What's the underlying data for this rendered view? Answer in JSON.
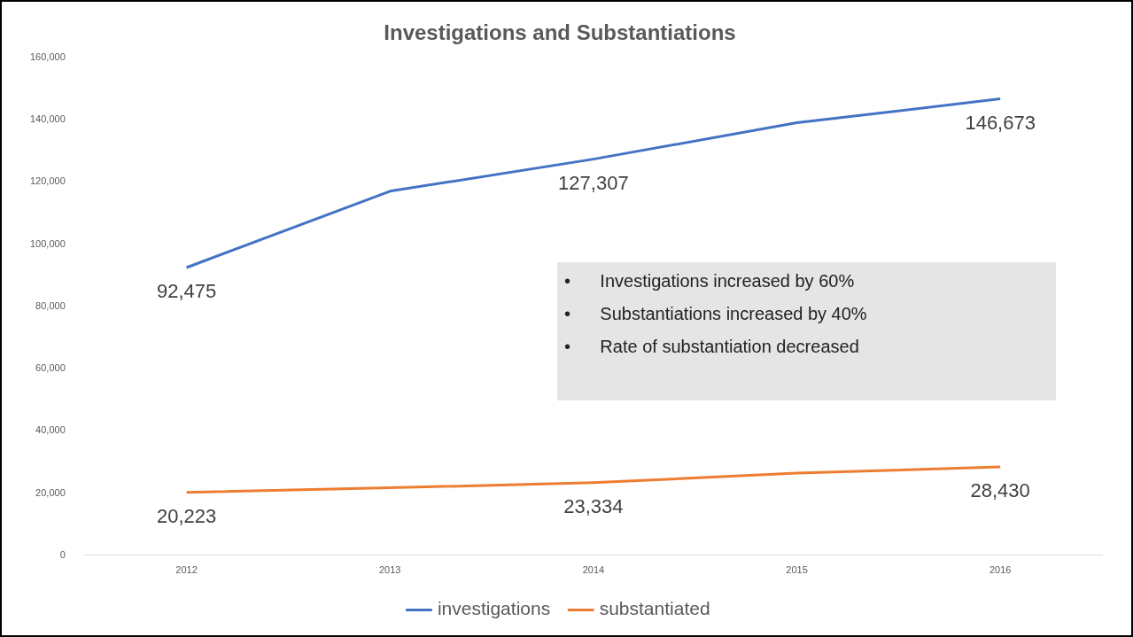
{
  "chart_data": {
    "type": "line",
    "title": "Investigations and Substantiations",
    "categories": [
      "2012",
      "2013",
      "2014",
      "2015",
      "2016"
    ],
    "series": [
      {
        "name": "investigations",
        "color": "#4472c4",
        "values": [
          92475,
          117000,
          127307,
          139000,
          146673
        ],
        "value_labels": [
          "92,475",
          null,
          "127,307",
          null,
          "146,673"
        ]
      },
      {
        "name": "substantiated",
        "color": "#ed7d31",
        "values": [
          20223,
          21700,
          23334,
          26400,
          28430
        ],
        "value_labels": [
          "20,223",
          null,
          "23,334",
          null,
          "28,430"
        ]
      }
    ],
    "ylim": [
      0,
      160000
    ],
    "yticks": [
      {
        "value": 0,
        "label": "0"
      },
      {
        "value": 20000,
        "label": "20,000"
      },
      {
        "value": 40000,
        "label": "40,000"
      },
      {
        "value": 60000,
        "label": "60,000"
      },
      {
        "value": 80000,
        "label": "80,000"
      },
      {
        "value": 100000,
        "label": "100,000"
      },
      {
        "value": 120000,
        "label": "120,000"
      },
      {
        "value": 140000,
        "label": "140,000"
      },
      {
        "value": 160000,
        "label": "160,000"
      }
    ],
    "grid": false,
    "legend": "bottom",
    "marker": "none",
    "line_style": "solid",
    "annotations": [
      "•      Investigations increased by 60%",
      "•      Substantiations increased by 40%",
      "•      Rate of substantiation decreased"
    ]
  }
}
